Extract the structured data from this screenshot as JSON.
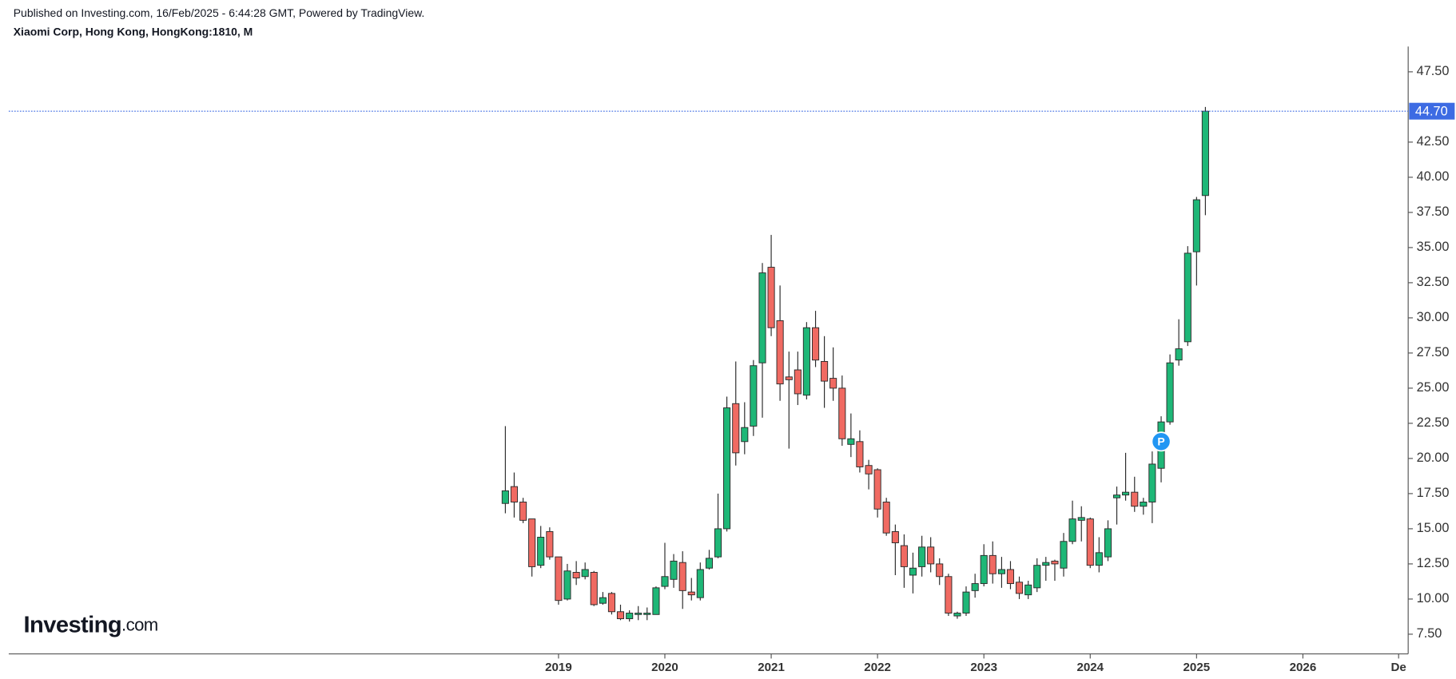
{
  "header": {
    "published": "Published on Investing.com, 16/Feb/2025 - 6:44:28 GMT, Powered by TradingView.",
    "symbol": "Xiaomi Corp, Hong Kong, HongKong:1810, M"
  },
  "logo": {
    "name": "Investing",
    "suffix": ".com"
  },
  "chart_data": {
    "type": "candlestick",
    "x": [
      2018.5,
      2018.583,
      2018.667,
      2018.75,
      2018.833,
      2018.917,
      2019,
      2019.083,
      2019.167,
      2019.25,
      2019.333,
      2019.417,
      2019.5,
      2019.583,
      2019.667,
      2019.75,
      2019.833,
      2019.917,
      2020,
      2020.083,
      2020.167,
      2020.25,
      2020.333,
      2020.417,
      2020.5,
      2020.583,
      2020.667,
      2020.75,
      2020.833,
      2020.917,
      2021,
      2021.083,
      2021.167,
      2021.25,
      2021.333,
      2021.417,
      2021.5,
      2021.583,
      2021.667,
      2021.75,
      2021.833,
      2021.917,
      2022,
      2022.083,
      2022.167,
      2022.25,
      2022.333,
      2022.417,
      2022.5,
      2022.583,
      2022.667,
      2022.75,
      2022.833,
      2022.917,
      2023,
      2023.083,
      2023.167,
      2023.25,
      2023.333,
      2023.417,
      2023.5,
      2023.583,
      2023.667,
      2023.75,
      2023.833,
      2023.917,
      2024,
      2024.083,
      2024.167,
      2024.25,
      2024.333,
      2024.417,
      2024.5,
      2024.583,
      2024.667,
      2024.75,
      2024.833,
      2024.917,
      2025,
      2025.083
    ],
    "open": [
      16.8,
      18.0,
      16.9,
      15.7,
      12.4,
      14.8,
      13.0,
      10.0,
      11.9,
      11.6,
      11.9,
      9.7,
      10.4,
      9.1,
      8.6,
      8.9,
      8.9,
      8.9,
      10.9,
      11.4,
      12.6,
      10.5,
      10.1,
      12.2,
      13.0,
      15.0,
      23.9,
      21.2,
      22.3,
      26.8,
      33.6,
      29.8,
      25.8,
      26.3,
      24.5,
      29.3,
      26.9,
      25.7,
      25.0,
      21.0,
      21.2,
      19.5,
      19.2,
      16.9,
      14.8,
      13.8,
      11.7,
      12.3,
      13.7,
      12.5,
      11.6,
      8.8,
      9.0,
      10.6,
      11.1,
      13.1,
      11.8,
      12.1,
      11.2,
      10.3,
      10.8,
      12.4,
      12.7,
      12.2,
      14.1,
      15.6,
      15.7,
      12.4,
      13.0,
      17.2,
      17.4,
      17.6,
      16.6,
      16.9,
      19.3,
      22.6,
      27.0,
      28.3,
      34.7,
      38.7
    ],
    "high": [
      22.3,
      19.0,
      17.2,
      15.7,
      15.2,
      15.1,
      13.0,
      12.5,
      12.7,
      12.6,
      12.0,
      10.5,
      10.5,
      9.6,
      9.2,
      9.5,
      9.4,
      10.9,
      14.0,
      13.2,
      13.4,
      11.5,
      12.6,
      13.5,
      17.5,
      24.4,
      26.9,
      24.0,
      27.0,
      33.9,
      35.9,
      32.3,
      27.6,
      27.6,
      29.7,
      30.5,
      28.7,
      27.9,
      25.9,
      23.2,
      22.0,
      19.9,
      19.3,
      17.2,
      15.3,
      14.6,
      13.3,
      14.5,
      14.4,
      12.9,
      11.8,
      9.1,
      10.9,
      11.8,
      13.9,
      14.1,
      13.0,
      12.7,
      11.6,
      11.3,
      12.9,
      13.0,
      12.8,
      14.7,
      17.0,
      16.6,
      15.8,
      14.4,
      15.6,
      18.0,
      20.4,
      18.7,
      17.2,
      20.5,
      23.0,
      27.4,
      29.9,
      35.1,
      38.6,
      45.0
    ],
    "low": [
      16.1,
      15.8,
      15.4,
      11.6,
      12.2,
      12.8,
      9.6,
      9.9,
      11.0,
      11.4,
      9.5,
      9.6,
      8.9,
      8.5,
      8.4,
      8.5,
      8.5,
      8.9,
      10.7,
      10.8,
      9.3,
      9.9,
      9.9,
      12.1,
      12.9,
      14.8,
      19.5,
      20.3,
      21.6,
      22.9,
      28.7,
      24.1,
      20.7,
      23.8,
      24.2,
      26.5,
      23.6,
      24.1,
      20.9,
      20.1,
      19.0,
      17.8,
      15.8,
      14.5,
      11.7,
      10.8,
      10.4,
      11.6,
      11.9,
      11.0,
      8.8,
      8.6,
      8.8,
      10.1,
      10.9,
      11.1,
      10.8,
      10.7,
      10.0,
      10.0,
      10.5,
      11.3,
      11.3,
      11.6,
      13.9,
      14.1,
      12.2,
      11.9,
      12.7,
      15.3,
      17.0,
      16.2,
      16.0,
      15.4,
      18.3,
      22.4,
      26.6,
      28.0,
      32.3,
      37.3
    ],
    "close": [
      17.7,
      16.9,
      15.6,
      12.3,
      14.4,
      13.0,
      9.9,
      12.0,
      11.5,
      12.1,
      9.6,
      10.1,
      9.1,
      8.6,
      9.0,
      9.0,
      9.0,
      10.8,
      11.6,
      12.7,
      10.6,
      10.3,
      12.1,
      12.9,
      15.0,
      23.6,
      20.4,
      22.2,
      26.6,
      33.2,
      29.3,
      25.3,
      25.6,
      24.6,
      29.3,
      27.0,
      25.5,
      25.0,
      21.4,
      21.4,
      19.4,
      18.9,
      16.4,
      14.7,
      14.0,
      12.3,
      12.2,
      13.7,
      12.5,
      11.6,
      9.0,
      9.0,
      10.5,
      11.1,
      13.1,
      11.8,
      12.1,
      11.1,
      10.4,
      11.0,
      12.4,
      12.6,
      12.5,
      14.1,
      15.7,
      15.8,
      12.4,
      13.3,
      15.0,
      17.4,
      17.6,
      16.6,
      16.9,
      19.6,
      22.6,
      26.8,
      27.8,
      34.6,
      38.4,
      44.7
    ],
    "up_color": "#1eb777",
    "down_color": "#f06a62",
    "wick_color": "#2a2a2a",
    "xlim": [
      2013.83,
      2026.99
    ],
    "xticks": [
      2019,
      2020,
      2021,
      2022,
      2023,
      2024,
      2025,
      2026,
      {
        "value": 2026.9,
        "label": "De"
      }
    ],
    "ylim": [
      6.1,
      49.3
    ],
    "yticks": [
      {
        "value": 7.5,
        "label": "7.50"
      },
      {
        "value": 10,
        "label": "10.00"
      },
      {
        "value": 12.5,
        "label": "12.50"
      },
      {
        "value": 15,
        "label": "15.00"
      },
      {
        "value": 17.5,
        "label": "17.50"
      },
      {
        "value": 20,
        "label": "20.00"
      },
      {
        "value": 22.5,
        "label": "22.50"
      },
      {
        "value": 25,
        "label": "25.00"
      },
      {
        "value": 27.5,
        "label": "27.50"
      },
      {
        "value": 30,
        "label": "30.00"
      },
      {
        "value": 32.5,
        "label": "32.50"
      },
      {
        "value": 35,
        "label": "35.00"
      },
      {
        "value": 37.5,
        "label": "37.50"
      },
      {
        "value": 40,
        "label": "40.00"
      },
      {
        "value": 42.5,
        "label": "42.50"
      },
      {
        "value": 47.5,
        "label": "47.50"
      }
    ],
    "last_price": {
      "value": 44.7,
      "label": "44.70"
    },
    "last_price_color": "#3d6be3",
    "annotations": [
      {
        "label": "P",
        "x": 2024.667,
        "y": 21.2,
        "color": "#2196f3"
      }
    ]
  }
}
